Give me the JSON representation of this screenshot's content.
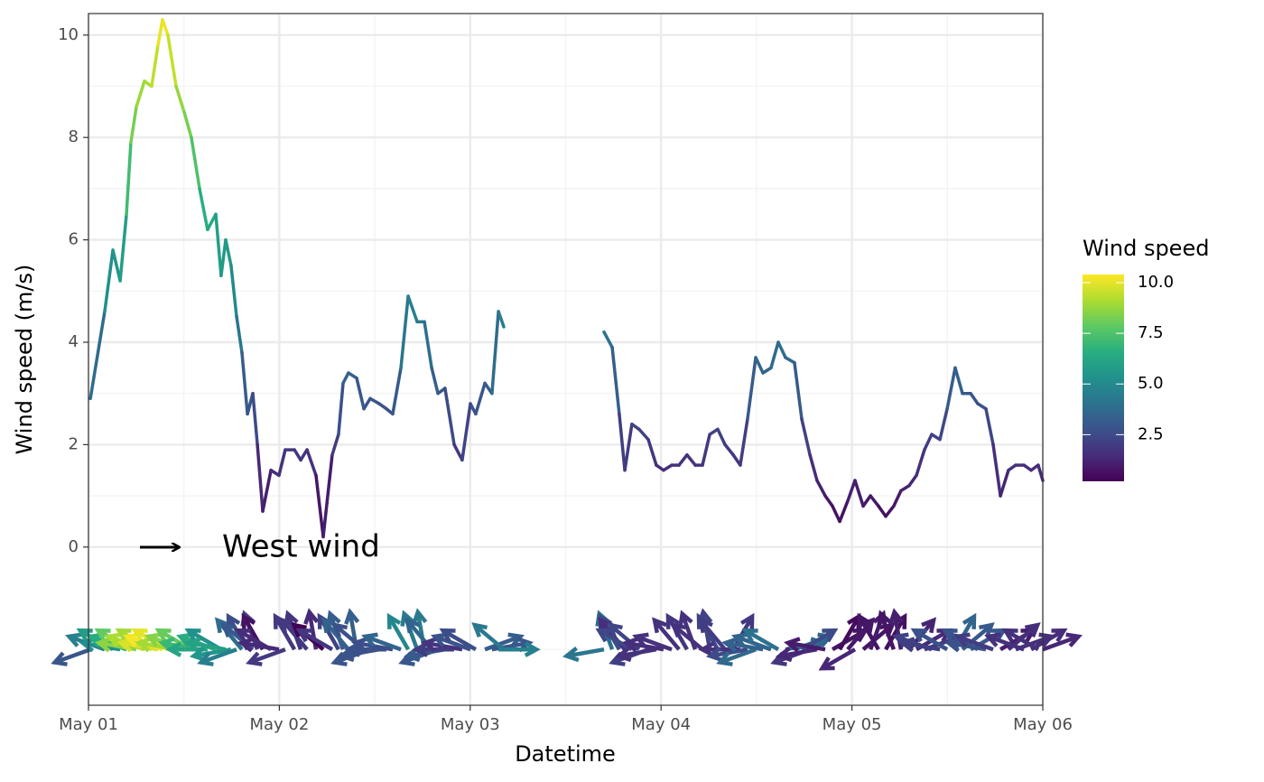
{
  "chart_data": {
    "type": "line",
    "xlabel": "Datetime",
    "ylabel": "Wind speed (m/s)",
    "annotation": "West wind",
    "xlim": [
      0,
      5
    ],
    "xticks": [
      {
        "value": 0,
        "label": "May 01"
      },
      {
        "value": 1,
        "label": "May 02"
      },
      {
        "value": 2,
        "label": "May 03"
      },
      {
        "value": 3,
        "label": "May 04"
      },
      {
        "value": 4,
        "label": "May 05"
      },
      {
        "value": 5,
        "label": "May 06"
      }
    ],
    "xminor": [
      0.5,
      1.5,
      2.5,
      3.5,
      4.5
    ],
    "ylim": [
      -3.09,
      10.42
    ],
    "yticks": [
      0,
      2,
      4,
      6,
      8,
      10
    ],
    "yminor": [
      -2,
      1,
      3,
      5,
      7,
      9
    ],
    "grid": true,
    "arrow_base": -2,
    "colorbar": {
      "title": "Wind speed",
      "lim": [
        0.2,
        10.4
      ],
      "ticks": [
        2.5,
        {
          "value": 5,
          "label": "5.0"
        },
        7.5,
        {
          "value": 10,
          "label": "10.0"
        }
      ]
    },
    "x": [
      0.01,
      0.085,
      0.128,
      0.166,
      0.199,
      0.222,
      0.251,
      0.293,
      0.331,
      0.364,
      0.388,
      0.416,
      0.459,
      0.501,
      0.539,
      0.582,
      0.624,
      0.667,
      0.695,
      0.719,
      0.747,
      0.776,
      0.804,
      0.833,
      0.861,
      0.885,
      0.913,
      0.956,
      0.998,
      1.031,
      1.079,
      1.112,
      1.145,
      1.192,
      1.23,
      1.277,
      1.31,
      1.334,
      1.362,
      1.405,
      1.443,
      1.476,
      1.523,
      1.561,
      1.594,
      1.637,
      1.675,
      1.722,
      1.76,
      1.798,
      1.831,
      1.868,
      1.916,
      1.958,
      2.001,
      2.029,
      2.077,
      2.114,
      2.148,
      2.176,
      2.4,
      2.701,
      2.744,
      2.781,
      2.81,
      2.847,
      2.885,
      2.933,
      2.975,
      3.013,
      3.056,
      3.094,
      3.136,
      3.179,
      3.217,
      3.255,
      3.297,
      3.335,
      3.378,
      3.415,
      3.453,
      3.496,
      3.534,
      3.576,
      3.614,
      3.652,
      3.699,
      3.737,
      3.78,
      3.817,
      3.86,
      3.898,
      3.936,
      3.978,
      4.016,
      4.059,
      4.097,
      4.139,
      4.177,
      4.219,
      4.257,
      4.3,
      4.338,
      4.38,
      4.418,
      4.461,
      4.499,
      4.541,
      4.579,
      4.622,
      4.659,
      4.702,
      4.74,
      4.778,
      4.82,
      4.858,
      4.901,
      4.939,
      4.976,
      5.0
    ],
    "values": [
      2.9,
      4.6,
      5.8,
      5.2,
      6.5,
      7.9,
      8.6,
      9.1,
      9.0,
      9.8,
      10.3,
      10.0,
      9.0,
      8.5,
      8.0,
      7.0,
      6.2,
      6.5,
      5.3,
      6.0,
      5.5,
      4.5,
      3.8,
      2.6,
      3.0,
      2.0,
      0.7,
      1.5,
      1.4,
      1.9,
      1.9,
      1.7,
      1.9,
      1.4,
      0.2,
      1.8,
      2.2,
      3.2,
      3.4,
      3.3,
      2.7,
      2.9,
      2.8,
      2.7,
      2.6,
      3.5,
      4.9,
      4.4,
      4.4,
      3.5,
      3.0,
      3.1,
      2.0,
      1.7,
      2.8,
      2.6,
      3.2,
      3.0,
      4.6,
      4.3,
      null,
      4.2,
      3.9,
      2.6,
      1.5,
      2.4,
      2.3,
      2.1,
      1.6,
      1.5,
      1.6,
      1.6,
      1.8,
      1.6,
      1.6,
      2.2,
      2.3,
      2.0,
      1.8,
      1.6,
      2.5,
      3.7,
      3.4,
      3.5,
      4.0,
      3.7,
      3.6,
      2.5,
      1.8,
      1.3,
      1.0,
      0.8,
      0.5,
      0.9,
      1.3,
      0.8,
      1.0,
      0.8,
      0.6,
      0.8,
      1.1,
      1.2,
      1.4,
      1.9,
      2.2,
      2.1,
      2.7,
      3.5,
      3.0,
      3.0,
      2.8,
      2.7,
      2.0,
      1.0,
      1.5,
      1.6,
      1.6,
      1.5,
      1.6,
      1.3
    ],
    "direction": [
      200,
      160,
      150,
      170,
      160,
      150,
      170,
      160,
      150,
      170,
      160,
      150,
      170,
      160,
      150,
      170,
      180,
      160,
      150,
      170,
      190,
      200,
      130,
      120,
      140,
      110,
      120,
      150,
      170,
      200,
      120,
      110,
      130,
      100,
      140,
      150,
      120,
      110,
      130,
      100,
      140,
      200,
      190,
      180,
      170,
      160,
      120,
      110,
      100,
      130,
      200,
      190,
      180,
      170,
      160,
      150,
      20,
      10,
      0,
      140,
      null,
      190,
      110,
      120,
      130,
      150,
      140,
      200,
      190,
      170,
      160,
      130,
      120,
      110,
      140,
      100,
      120,
      130,
      60,
      180,
      190,
      200,
      170,
      160,
      150,
      10,
      20,
      30,
      200,
      190,
      170,
      30,
      60,
      50,
      210,
      40,
      70,
      120,
      60,
      110,
      100,
      50,
      30,
      20,
      160,
      170,
      150,
      60,
      40,
      30,
      150,
      170,
      160,
      30,
      40,
      20,
      160,
      30,
      150,
      20
    ]
  }
}
